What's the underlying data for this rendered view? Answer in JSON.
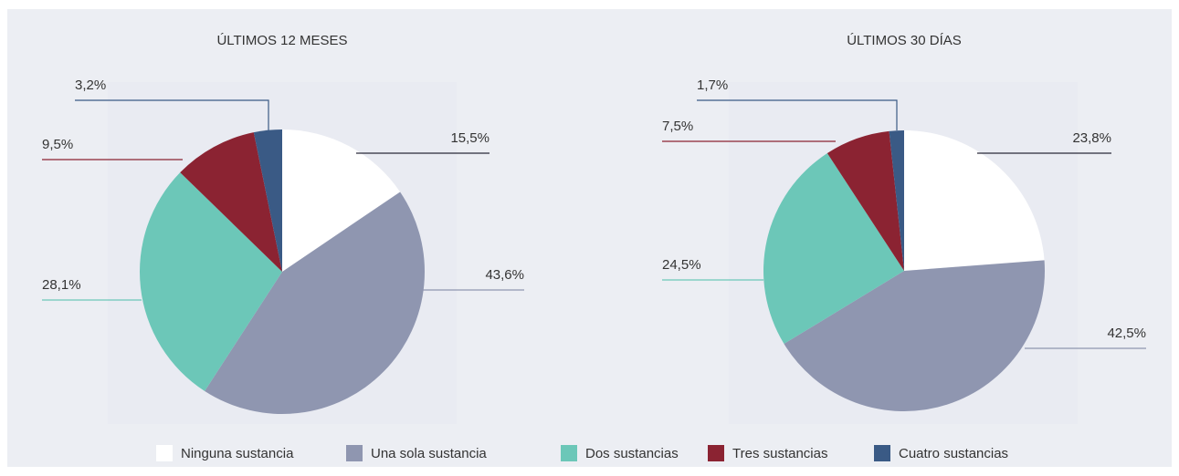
{
  "legend": {
    "categories": [
      "Ninguna sustancia",
      "Una sola sustancia",
      "Dos sustancias",
      "Tres sustancias",
      "Cuatro sustancias"
    ],
    "colors": [
      "#ffffff",
      "#8f96b0",
      "#6cc7b8",
      "#8b2332",
      "#3a5a85"
    ]
  },
  "chart_data": [
    {
      "type": "pie",
      "title": "ÚLTIMOS 12 MESES",
      "values": [
        15.5,
        43.6,
        28.1,
        9.5,
        3.2
      ],
      "value_labels": [
        "15,5%",
        "43,6%",
        "28,1%",
        "9,5%",
        "3,2%"
      ]
    },
    {
      "type": "pie",
      "title": "ÚLTIMOS 30 DÍAS",
      "values": [
        23.8,
        42.5,
        24.5,
        7.5,
        1.7
      ],
      "value_labels": [
        "23,8%",
        "42,5%",
        "24,5%",
        "7,5%",
        "1,7%"
      ]
    }
  ]
}
